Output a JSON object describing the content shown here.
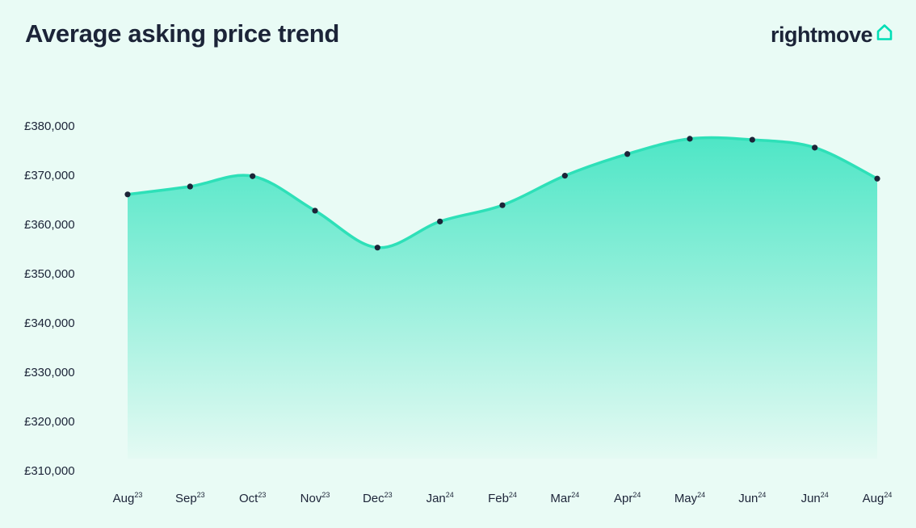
{
  "title": "Average asking price trend",
  "brand": {
    "name": "rightmove",
    "icon": "house-outline-icon",
    "accent_color": "#00deb6"
  },
  "colors": {
    "background": "#e9fbf5",
    "line": "#2ee0b8",
    "fill_top": "#4ee6c6",
    "fill_bottom": "#e4faf3",
    "marker": "#1c2438",
    "text": "#1c2438"
  },
  "chart_data": {
    "type": "area",
    "title": "Average asking price trend",
    "xlabel": "",
    "ylabel": "",
    "categories": [
      {
        "month": "Aug",
        "year": "23"
      },
      {
        "month": "Sep",
        "year": "23"
      },
      {
        "month": "Oct",
        "year": "23"
      },
      {
        "month": "Nov",
        "year": "23"
      },
      {
        "month": "Dec",
        "year": "23"
      },
      {
        "month": "Jan",
        "year": "24"
      },
      {
        "month": "Feb",
        "year": "24"
      },
      {
        "month": "Mar",
        "year": "24"
      },
      {
        "month": "Apr",
        "year": "24"
      },
      {
        "month": "May",
        "year": "24"
      },
      {
        "month": "Jun",
        "year": "24"
      },
      {
        "month": "Jun",
        "year": "24"
      },
      {
        "month": "Aug",
        "year": "24"
      }
    ],
    "values": [
      366100,
      367700,
      369800,
      362800,
      355300,
      360600,
      363900,
      369900,
      374300,
      377400,
      377200,
      375600,
      369300
    ],
    "ylim": [
      310000,
      380000
    ],
    "yticks": [
      380000,
      370000,
      360000,
      350000,
      340000,
      330000,
      320000,
      310000
    ],
    "ytick_labels": [
      "£380,000",
      "£370,000",
      "£360,000",
      "£350,000",
      "£340,000",
      "£330,000",
      "£320,000",
      "£310,000"
    ],
    "grid": false,
    "legend": "none",
    "markers": true
  }
}
